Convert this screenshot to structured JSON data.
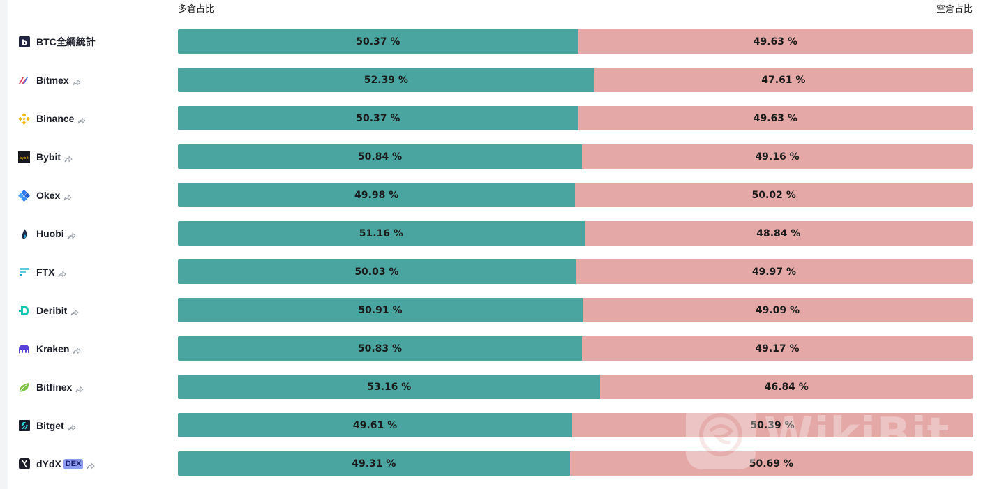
{
  "header": {
    "long_label": "多倉占比",
    "short_label": "空倉占比"
  },
  "colors": {
    "long": "#4aa5a0",
    "short": "#e4a9a7"
  },
  "exchanges": [
    {
      "name": "BTC全網統計",
      "icon": "btc-aggregate-icon",
      "share": false,
      "long": "50.37 %",
      "short": "49.63 %",
      "long_fraction": 0.5037
    },
    {
      "name": "Bitmex",
      "icon": "bitmex-logo-icon",
      "share": true,
      "long": "52.39 %",
      "short": "47.61 %",
      "long_fraction": 0.5239
    },
    {
      "name": "Binance",
      "icon": "binance-logo-icon",
      "share": true,
      "long": "50.37 %",
      "short": "49.63 %",
      "long_fraction": 0.5037
    },
    {
      "name": "Bybit",
      "icon": "bybit-logo-icon",
      "share": true,
      "long": "50.84 %",
      "short": "49.16 %",
      "long_fraction": 0.5084
    },
    {
      "name": "Okex",
      "icon": "okex-logo-icon",
      "share": true,
      "long": "49.98 %",
      "short": "50.02 %",
      "long_fraction": 0.4998
    },
    {
      "name": "Huobi",
      "icon": "huobi-logo-icon",
      "share": true,
      "long": "51.16 %",
      "short": "48.84 %",
      "long_fraction": 0.5116
    },
    {
      "name": "FTX",
      "icon": "ftx-logo-icon",
      "share": true,
      "long": "50.03 %",
      "short": "49.97 %",
      "long_fraction": 0.5003
    },
    {
      "name": "Deribit",
      "icon": "deribit-logo-icon",
      "share": true,
      "long": "50.91 %",
      "short": "49.09 %",
      "long_fraction": 0.5091
    },
    {
      "name": "Kraken",
      "icon": "kraken-logo-icon",
      "share": true,
      "long": "50.83 %",
      "short": "49.17 %",
      "long_fraction": 0.5083
    },
    {
      "name": "Bitfinex",
      "icon": "bitfinex-logo-icon",
      "share": true,
      "long": "53.16 %",
      "short": "46.84 %",
      "long_fraction": 0.5316
    },
    {
      "name": "Bitget",
      "icon": "bitget-logo-icon",
      "share": true,
      "long": "49.61 %",
      "short": "50.39 %",
      "long_fraction": 0.4961
    },
    {
      "name": "dYdX",
      "icon": "dydx-logo-icon",
      "share": true,
      "badge": "DEX",
      "long": "49.31 %",
      "short": "50.69 %",
      "long_fraction": 0.4931
    }
  ],
  "watermark": {
    "text": "WikiBit",
    "icon": "wikibit-logo-icon"
  }
}
